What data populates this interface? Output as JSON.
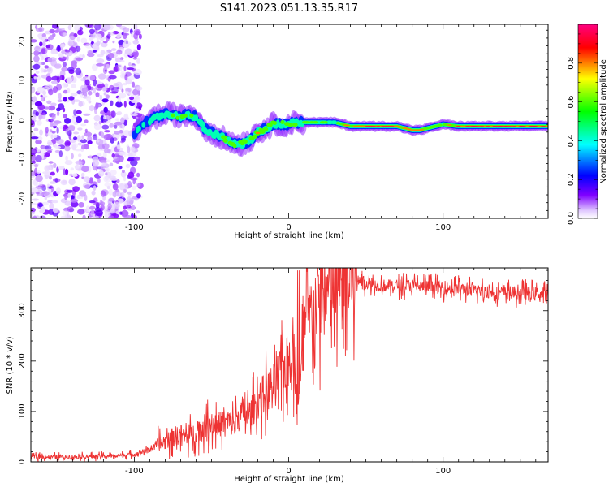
{
  "figure": {
    "title": "S141.2023.051.13.35.R17"
  },
  "chart_data": [
    {
      "type": "heatmap",
      "title": "S141.2023.051.13.35.R17",
      "xlabel": "Height of straight line (km)",
      "ylabel": "Frequency (Hz)",
      "xlim": [
        -167,
        168
      ],
      "ylim": [
        -25,
        24.5
      ],
      "xticks": [
        -100,
        0,
        100
      ],
      "yticks": [
        -20,
        -10,
        0,
        10,
        20
      ],
      "colorbar": {
        "label": "Normalized spectral amplitude",
        "range": [
          0,
          1
        ],
        "ticks": [
          0.0,
          0.2,
          0.4,
          0.6,
          0.8
        ],
        "colors": [
          "#ffffff",
          "#e0c8ff",
          "#7f00ff",
          "#0000ff",
          "#00ffff",
          "#00ff00",
          "#ffff00",
          "#ff0000",
          "#ff0080"
        ]
      },
      "ridge": {
        "x": [
          -100,
          -95,
          -90,
          -85,
          -80,
          -75,
          -70,
          -65,
          -60,
          -55,
          -50,
          -45,
          -40,
          -35,
          -30,
          -25,
          -20,
          -15,
          -10,
          -5,
          0,
          5,
          10,
          20,
          30,
          40,
          50,
          60,
          70,
          75,
          80,
          85,
          90,
          95,
          100,
          110,
          120,
          130,
          140,
          150,
          160,
          168
        ],
        "y": [
          -4,
          -1,
          0,
          1,
          1.5,
          1.5,
          1,
          1.5,
          1,
          -2,
          -3,
          -4,
          -5,
          -6,
          -6,
          -5,
          -3,
          -2,
          -1,
          -1,
          -1,
          -0.5,
          -0.5,
          -0.5,
          -0.5,
          -1.5,
          -1.5,
          -1.5,
          -1.5,
          -2,
          -2.5,
          -2.5,
          -2,
          -1.5,
          -1,
          -1.5,
          -1.5,
          -1.5,
          -1.5,
          -1.5,
          -1.5,
          -1.5
        ],
        "amplitude": [
          0.35,
          0.3,
          0.45,
          0.4,
          0.5,
          0.55,
          0.5,
          0.45,
          0.5,
          0.4,
          0.45,
          0.5,
          0.55,
          0.6,
          0.55,
          0.45,
          0.65,
          0.6,
          0.55,
          0.5,
          0.45,
          0.5,
          0.55,
          0.5,
          0.45,
          0.75,
          0.85,
          0.9,
          0.88,
          0.7,
          0.85,
          0.8,
          0.7,
          0.6,
          0.55,
          0.8,
          0.9,
          0.9,
          0.9,
          0.88,
          0.85,
          0.8
        ]
      },
      "noise_region_x": [
        -167,
        -100
      ]
    },
    {
      "type": "line",
      "xlabel": "Height of straight line (km)",
      "ylabel": "SNR (10 * v/v)",
      "xlim": [
        -167,
        168
      ],
      "ylim": [
        0,
        385
      ],
      "xticks": [
        -100,
        0,
        100
      ],
      "yticks": [
        0,
        100,
        200,
        300
      ],
      "series": [
        {
          "color": "#ee3333",
          "x": [
            -167,
            -140,
            -110,
            -100,
            -95,
            -90,
            -85,
            -80,
            -75,
            -70,
            -65,
            -60,
            -55,
            -50,
            -45,
            -40,
            -35,
            -30,
            -25,
            -20,
            -15,
            -10,
            -5,
            0,
            3,
            5,
            7,
            10,
            15,
            20,
            25,
            30,
            35,
            40,
            45,
            50,
            60,
            80,
            100,
            120,
            140,
            160,
            168
          ],
          "y": [
            10,
            10,
            12,
            15,
            20,
            25,
            35,
            40,
            50,
            55,
            50,
            60,
            70,
            75,
            75,
            80,
            75,
            100,
            95,
            120,
            140,
            150,
            180,
            200,
            220,
            160,
            120,
            260,
            300,
            320,
            330,
            340,
            350,
            355,
            365,
            355,
            350,
            350,
            345,
            340,
            335,
            335,
            330
          ]
        }
      ]
    }
  ]
}
